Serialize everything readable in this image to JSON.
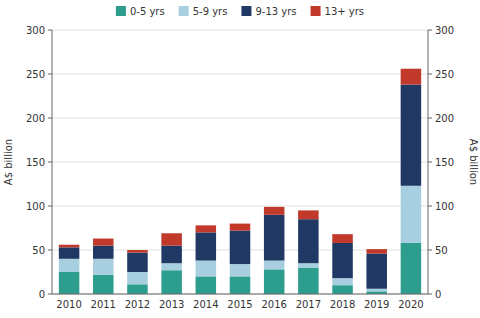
{
  "chart_data": {
    "type": "bar",
    "stacked": true,
    "categories": [
      "2010",
      "2011",
      "2012",
      "2013",
      "2014",
      "2015",
      "2016",
      "2017",
      "2018",
      "2019",
      "2020"
    ],
    "series": [
      {
        "name": "0-5 yrs",
        "color": "#2d9e8e",
        "values": [
          25,
          22,
          11,
          27,
          20,
          20,
          28,
          30,
          10,
          3,
          58
        ]
      },
      {
        "name": "5-9 yrs",
        "color": "#a8cfe0",
        "values": [
          15,
          18,
          14,
          8,
          18,
          14,
          10,
          5,
          8,
          3,
          65
        ]
      },
      {
        "name": "9-13 yrs",
        "color": "#1f3864",
        "values": [
          13,
          15,
          22,
          20,
          32,
          38,
          52,
          50,
          40,
          40,
          115
        ]
      },
      {
        "name": "13+ yrs",
        "color": "#c0392b",
        "values": [
          3,
          8,
          3,
          14,
          8,
          8,
          9,
          10,
          10,
          5,
          18
        ]
      }
    ],
    "ylabel": "A$ billion",
    "ylim": [
      0,
      300
    ],
    "yticks": [
      0,
      50,
      100,
      150,
      200,
      250,
      300
    ],
    "y2label": "A$ billion",
    "y2lim": [
      0,
      300
    ],
    "y2ticks": [
      0,
      50,
      100,
      150,
      200,
      250,
      300
    ],
    "grid": true,
    "legend": "top"
  }
}
